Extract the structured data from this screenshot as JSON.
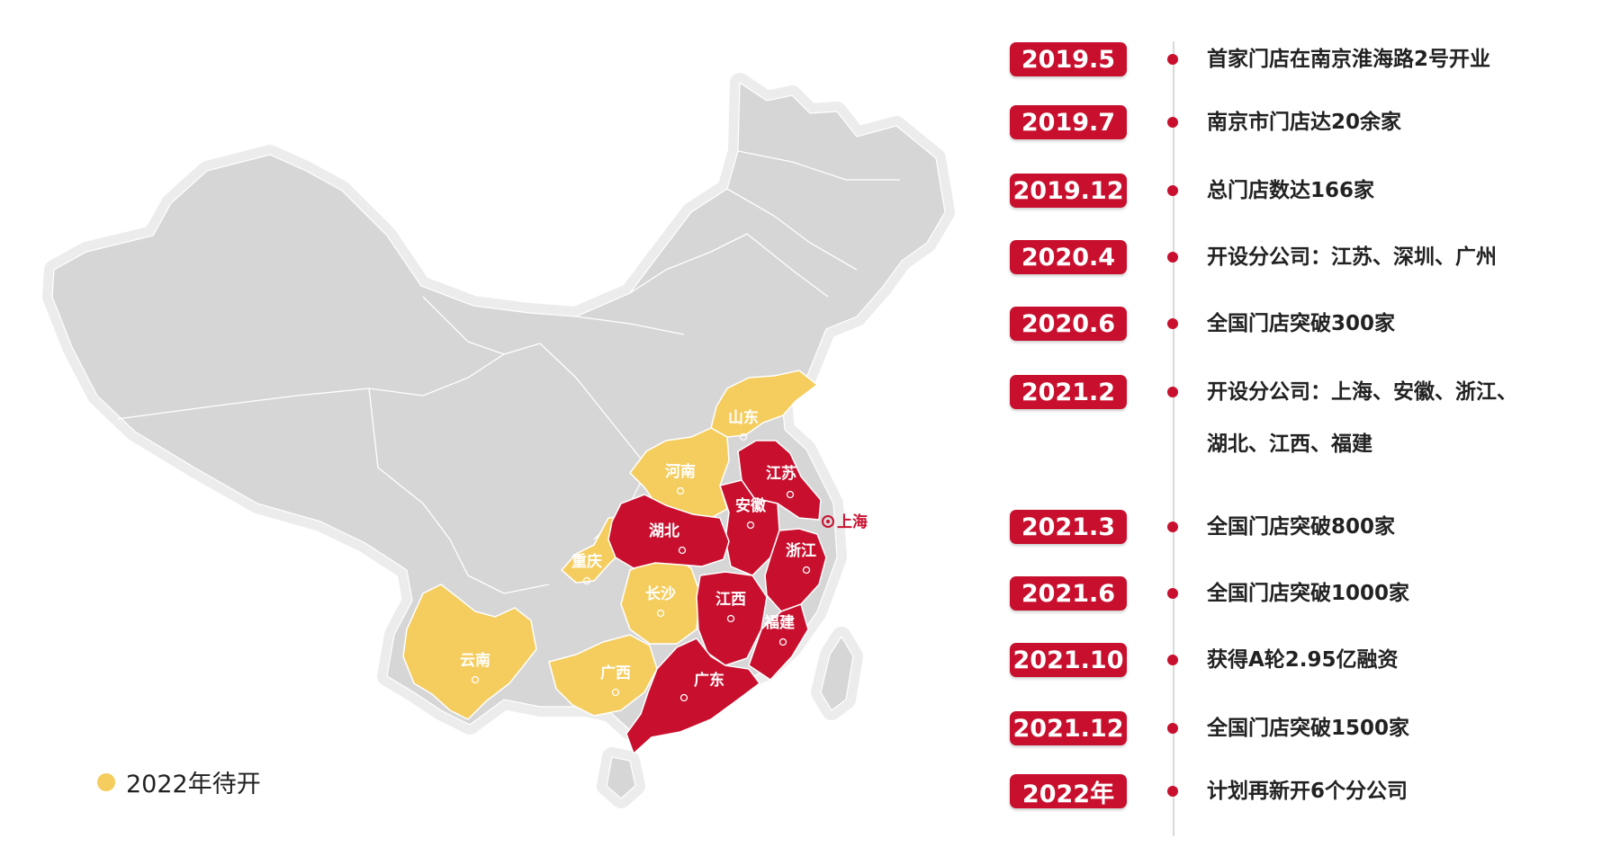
{
  "colors": {
    "opened": "#c8102e",
    "pending": "#f4cd5e",
    "land": "#d6d6d6",
    "outline": "#ececec"
  },
  "map": {
    "provinces": [
      {
        "key": "shandong",
        "name": "山东",
        "status": "pending"
      },
      {
        "key": "henan",
        "name": "河南",
        "status": "pending"
      },
      {
        "key": "jiangsu",
        "name": "江苏",
        "status": "opened"
      },
      {
        "key": "anhui",
        "name": "安徽",
        "status": "opened"
      },
      {
        "key": "hubei",
        "name": "湖北",
        "status": "opened"
      },
      {
        "key": "zhejiang",
        "name": "浙江",
        "status": "opened"
      },
      {
        "key": "chongqing",
        "name": "重庆",
        "status": "pending"
      },
      {
        "key": "changsha",
        "name": "长沙",
        "status": "pending"
      },
      {
        "key": "jiangxi",
        "name": "江西",
        "status": "opened"
      },
      {
        "key": "fujian",
        "name": "福建",
        "status": "opened"
      },
      {
        "key": "yunnan",
        "name": "云南",
        "status": "pending"
      },
      {
        "key": "guangxi",
        "name": "广西",
        "status": "pending"
      },
      {
        "key": "guangdong",
        "name": "广东",
        "status": "opened"
      }
    ],
    "shanghai_label": "上海"
  },
  "legend": {
    "label": "2022年待开"
  },
  "timeline": [
    {
      "date": "2019.5",
      "text": "首家门店在南京淮海路2号开业"
    },
    {
      "date": "2019.7",
      "text": "南京市门店达20余家"
    },
    {
      "date": "2019.12",
      "text": "总门店数达166家"
    },
    {
      "date": "2020.4",
      "text": "开设分公司：江苏、深圳、广州"
    },
    {
      "date": "2020.6",
      "text": "全国门店突破300家"
    },
    {
      "date": "2021.2",
      "text": "开设分公司：上海、安徽、浙江、",
      "text2": "湖北、江西、福建"
    },
    {
      "date": "2021.3",
      "text": "全国门店突破800家"
    },
    {
      "date": "2021.6",
      "text": "全国门店突破1000家"
    },
    {
      "date": "2021.10",
      "text": "获得A轮2.95亿融资"
    },
    {
      "date": "2021.12",
      "text": "全国门店突破1500家"
    },
    {
      "date": "2022年",
      "text": "计划再新开6个分公司"
    }
  ]
}
